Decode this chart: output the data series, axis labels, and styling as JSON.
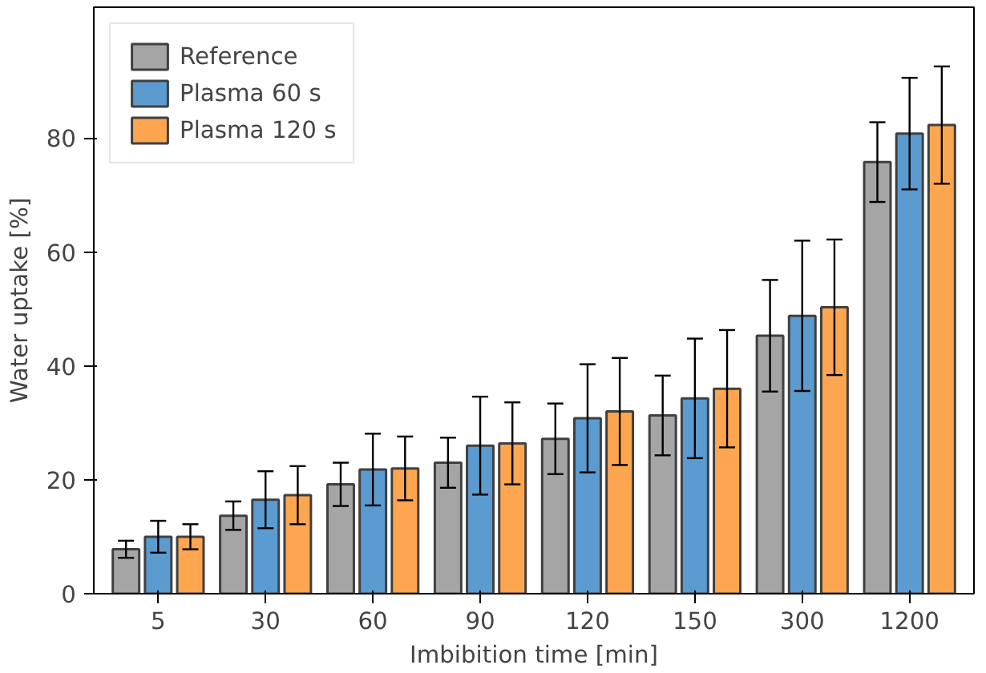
{
  "chart_data": {
    "type": "bar",
    "xlabel": "Imbibition time [min]",
    "ylabel": "Water uptake [%]",
    "categories": [
      "5",
      "30",
      "60",
      "90",
      "120",
      "150",
      "300",
      "1200"
    ],
    "ylim": [
      0,
      103
    ],
    "yticks": [
      0,
      20,
      40,
      60,
      80
    ],
    "grid": false,
    "legend": "top left",
    "series": [
      {
        "name": "Reference",
        "color": "#a5a5a5",
        "values": [
          7.8,
          13.7,
          19.2,
          23,
          27.2,
          31.3,
          45.3,
          75.8
        ],
        "errors": [
          1.5,
          2.5,
          3.8,
          4.4,
          6.2,
          7,
          9.8,
          7
        ]
      },
      {
        "name": "Plasma 60 s",
        "color": "#5b9bcf",
        "values": [
          10,
          16.5,
          21.8,
          26,
          30.8,
          34.3,
          48.8,
          80.8
        ],
        "errors": [
          2.8,
          5,
          6.3,
          8.6,
          9.5,
          10.5,
          13.2,
          9.8
        ]
      },
      {
        "name": "Plasma 120 s",
        "color": "#fea64f",
        "values": [
          10,
          17.3,
          22,
          26.4,
          32,
          36,
          50.3,
          82.3
        ],
        "errors": [
          2.2,
          5.1,
          5.6,
          7.2,
          9.4,
          10.3,
          11.9,
          10.3
        ]
      }
    ]
  }
}
